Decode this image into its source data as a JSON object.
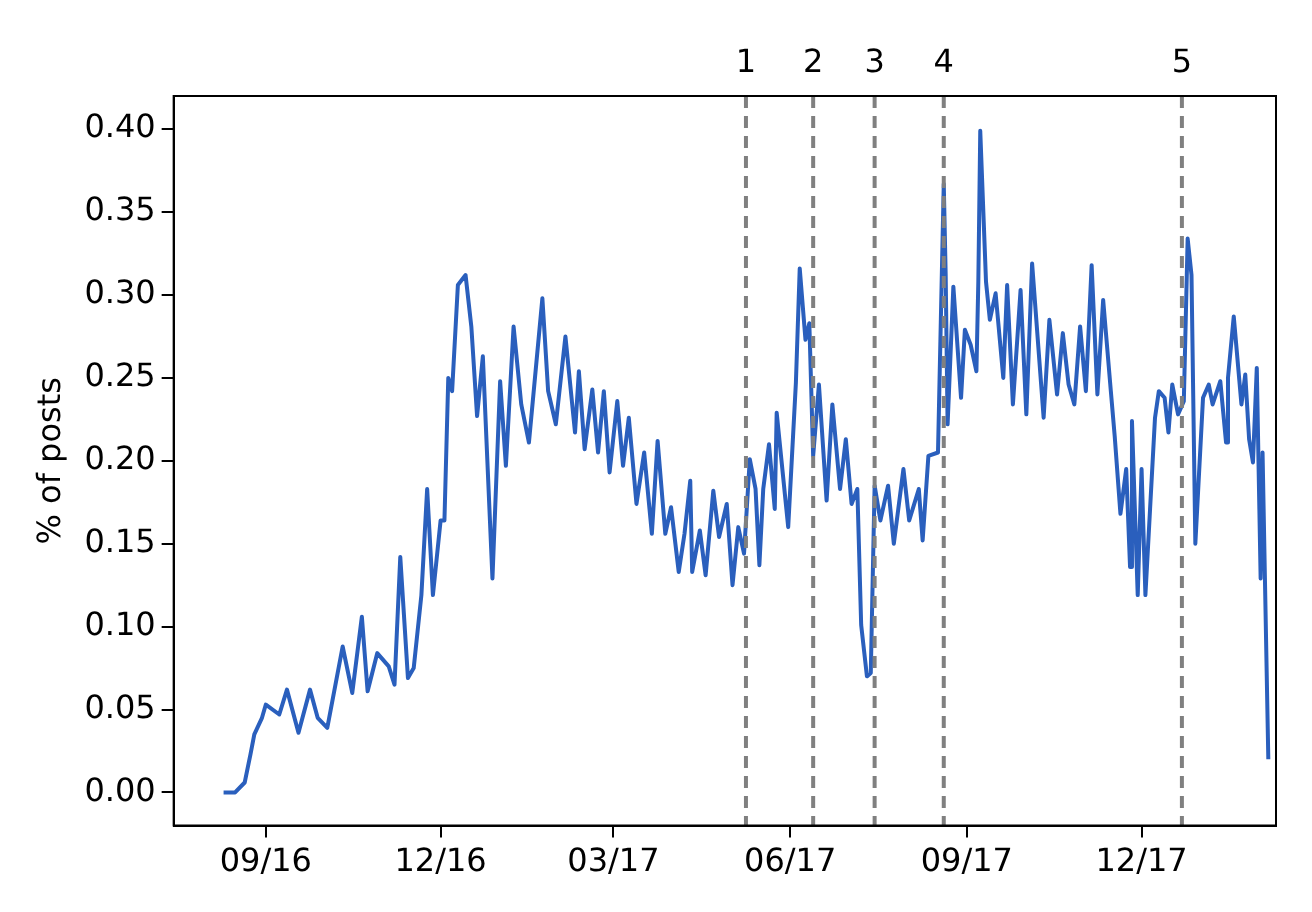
{
  "chart_data": {
    "type": "line",
    "ylabel": "% of posts",
    "x": [
      "2016-08-10",
      "2016-08-16",
      "2016-08-21",
      "2016-08-24",
      "2016-08-26",
      "2016-08-30",
      "2016-09-01",
      "2016-09-08",
      "2016-09-12",
      "2016-09-18",
      "2016-09-24",
      "2016-09-28",
      "2016-10-03",
      "2016-10-11",
      "2016-10-16",
      "2016-10-21",
      "2016-10-24",
      "2016-10-29",
      "2016-11-04",
      "2016-11-07",
      "2016-11-10",
      "2016-11-14",
      "2016-11-17",
      "2016-11-21",
      "2016-11-24",
      "2016-11-27",
      "2016-12-01",
      "2016-12-03",
      "2016-12-05",
      "2016-12-07",
      "2016-12-10",
      "2016-12-14",
      "2016-12-17",
      "2016-12-20",
      "2016-12-23",
      "2016-12-28",
      "2017-01-01",
      "2017-01-04",
      "2017-01-08",
      "2017-01-12",
      "2017-01-16",
      "2017-01-23",
      "2017-01-26",
      "2017-01-30",
      "2017-02-04",
      "2017-02-09",
      "2017-02-11",
      "2017-02-14",
      "2017-02-18",
      "2017-02-21",
      "2017-02-24",
      "2017-02-27",
      "2017-03-03",
      "2017-03-06",
      "2017-03-09",
      "2017-03-13",
      "2017-03-17",
      "2017-03-21",
      "2017-03-24",
      "2017-03-28",
      "2017-03-31",
      "2017-04-04",
      "2017-04-07",
      "2017-04-10",
      "2017-04-11",
      "2017-04-15",
      "2017-04-18",
      "2017-04-22",
      "2017-04-25",
      "2017-04-29",
      "2017-05-02",
      "2017-05-05",
      "2017-05-08",
      "2017-05-11",
      "2017-05-14",
      "2017-05-16",
      "2017-05-18",
      "2017-05-21",
      "2017-05-24",
      "2017-05-25",
      "2017-05-31",
      "2017-06-04",
      "2017-06-06",
      "2017-06-09",
      "2017-06-11",
      "2017-06-13",
      "2017-06-16",
      "2017-06-20",
      "2017-06-23",
      "2017-06-27",
      "2017-06-30",
      "2017-07-03",
      "2017-07-06",
      "2017-07-08",
      "2017-07-11",
      "2017-07-13",
      "2017-07-15",
      "2017-07-18",
      "2017-07-22",
      "2017-07-25",
      "2017-07-30",
      "2017-08-02",
      "2017-08-07",
      "2017-08-09",
      "2017-08-12",
      "2017-08-17",
      "2017-08-20",
      "2017-08-21",
      "2017-08-22",
      "2017-08-25",
      "2017-08-29",
      "2017-08-31",
      "2017-09-03",
      "2017-09-06",
      "2017-09-07",
      "2017-09-08",
      "2017-09-11",
      "2017-09-13",
      "2017-09-16",
      "2017-09-20",
      "2017-09-22",
      "2017-09-25",
      "2017-09-29",
      "2017-10-02",
      "2017-10-05",
      "2017-10-11",
      "2017-10-14",
      "2017-10-18",
      "2017-10-21",
      "2017-10-24",
      "2017-10-27",
      "2017-10-30",
      "2017-11-02",
      "2017-11-05",
      "2017-11-08",
      "2017-11-11",
      "2017-11-15",
      "2017-11-17",
      "2017-11-20",
      "2017-11-23",
      "2017-11-25",
      "2017-11-26",
      "2017-11-29",
      "2017-12-01",
      "2017-12-03",
      "2017-12-08",
      "2017-12-10",
      "2017-12-13",
      "2017-12-15",
      "2017-12-17",
      "2017-12-20",
      "2017-12-23",
      "2017-12-25",
      "2017-12-27",
      "2017-12-29",
      "2018-01-02",
      "2018-01-05",
      "2018-01-07",
      "2018-01-11",
      "2018-01-14",
      "2018-01-15",
      "2018-01-18",
      "2018-01-22",
      "2018-01-24",
      "2018-01-26",
      "2018-01-28",
      "2018-01-30",
      "2018-02-01",
      "2018-02-02",
      "2018-02-05"
    ],
    "series": [
      {
        "color": "#2a5fbd",
        "values": [
          0,
          0,
          0.006,
          0.023,
          0.035,
          0.045,
          0.053,
          0.047,
          0.062,
          0.036,
          0.062,
          0.045,
          0.039,
          0.088,
          0.06,
          0.106,
          0.061,
          0.084,
          0.076,
          0.065,
          0.142,
          0.069,
          0.075,
          0.119,
          0.183,
          0.119,
          0.164,
          0.164,
          0.25,
          0.242,
          0.306,
          0.312,
          0.281,
          0.227,
          0.263,
          0.129,
          0.248,
          0.197,
          0.281,
          0.234,
          0.211,
          0.298,
          0.242,
          0.222,
          0.275,
          0.217,
          0.254,
          0.207,
          0.243,
          0.205,
          0.242,
          0.193,
          0.236,
          0.197,
          0.226,
          0.174,
          0.205,
          0.156,
          0.212,
          0.156,
          0.172,
          0.133,
          0.156,
          0.188,
          0.133,
          0.158,
          0.131,
          0.182,
          0.154,
          0.174,
          0.125,
          0.16,
          0.144,
          0.201,
          0.183,
          0.137,
          0.183,
          0.21,
          0.171,
          0.229,
          0.16,
          0.247,
          0.316,
          0.273,
          0.283,
          0.203,
          0.246,
          0.176,
          0.234,
          0.183,
          0.213,
          0.174,
          0.183,
          0.101,
          0.07,
          0.072,
          0.185,
          0.164,
          0.185,
          0.15,
          0.195,
          0.164,
          0.183,
          0.152,
          0.203,
          0.205,
          0.367,
          0.312,
          0.222,
          0.305,
          0.238,
          0.279,
          0.27,
          0.254,
          0.308,
          0.399,
          0.308,
          0.285,
          0.301,
          0.25,
          0.306,
          0.234,
          0.303,
          0.228,
          0.319,
          0.226,
          0.285,
          0.24,
          0.277,
          0.246,
          0.234,
          0.281,
          0.242,
          0.318,
          0.24,
          0.297,
          0.242,
          0.215,
          0.168,
          0.195,
          0.136,
          0.224,
          0.119,
          0.195,
          0.119,
          0.226,
          0.242,
          0.238,
          0.217,
          0.246,
          0.228,
          0.236,
          0.334,
          0.312,
          0.15,
          0.238,
          0.246,
          0.234,
          0.248,
          0.211,
          0.25,
          0.287,
          0.234,
          0.252,
          0.213,
          0.199,
          0.256,
          0.129,
          0.205,
          0.02
        ]
      }
    ],
    "xlim": [
      "2016-07-15",
      "2018-02-09"
    ],
    "xticks": [
      {
        "value": "2016-09-01",
        "label": "09/16"
      },
      {
        "value": "2016-12-01",
        "label": "12/16"
      },
      {
        "value": "2017-03-01",
        "label": "03/17"
      },
      {
        "value": "2017-06-01",
        "label": "06/17"
      },
      {
        "value": "2017-09-01",
        "label": "09/17"
      },
      {
        "value": "2017-12-01",
        "label": "12/17"
      }
    ],
    "ylim": [
      -0.02,
      0.42
    ],
    "yticks": [
      {
        "value": 0,
        "label": "0.00"
      },
      {
        "value": 0.05,
        "label": "0.05"
      },
      {
        "value": 0.1,
        "label": "0.10"
      },
      {
        "value": 0.15,
        "label": "0.15"
      },
      {
        "value": 0.2,
        "label": "0.20"
      },
      {
        "value": 0.25,
        "label": "0.25"
      },
      {
        "value": 0.3,
        "label": "0.30"
      },
      {
        "value": 0.35,
        "label": "0.35"
      },
      {
        "value": 0.4,
        "label": "0.40"
      }
    ],
    "ref_lines": [
      {
        "axis": "x",
        "value": "2017-05-09",
        "label": "1",
        "color": "#808080",
        "line_style": "dashed"
      },
      {
        "axis": "x",
        "value": "2017-06-13",
        "label": "2",
        "color": "#808080",
        "line_style": "dashed"
      },
      {
        "axis": "x",
        "value": "2017-07-15",
        "label": "3",
        "color": "#808080",
        "line_style": "dashed"
      },
      {
        "axis": "x",
        "value": "2017-08-20",
        "label": "4",
        "color": "#808080",
        "line_style": "dashed"
      },
      {
        "axis": "x",
        "value": "2017-12-22",
        "label": "5",
        "color": "#808080",
        "line_style": "dashed"
      }
    ],
    "grid": false,
    "legend": false,
    "marker": "none",
    "line_style": "solid"
  }
}
